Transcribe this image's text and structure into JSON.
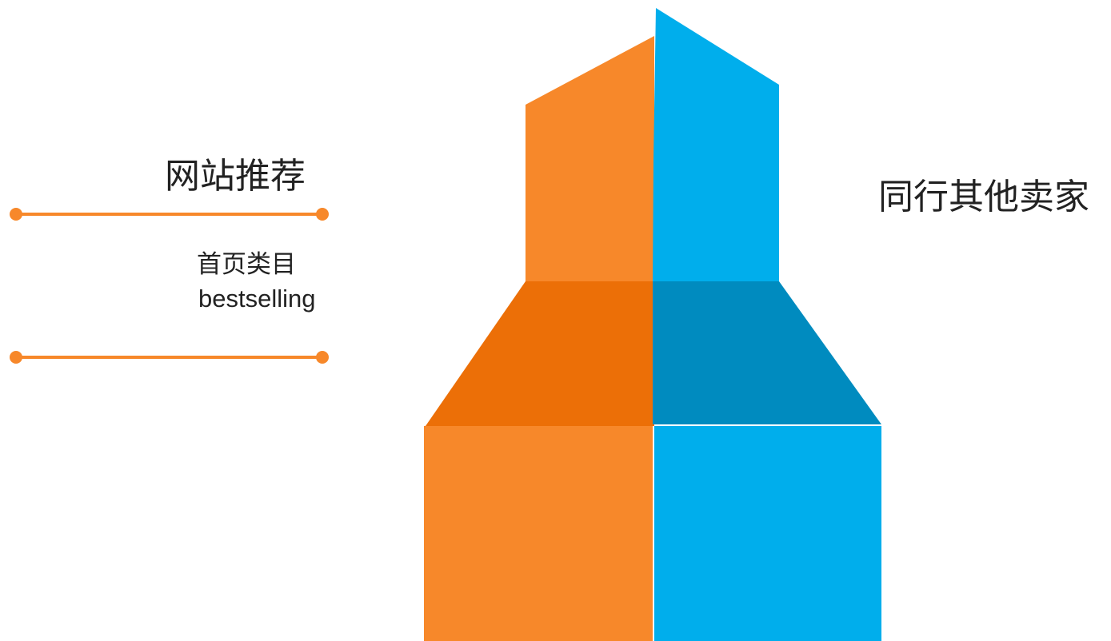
{
  "diagram": {
    "left_title": "网站推荐",
    "left_sub_line1": "首页类目",
    "left_sub_line2": "bestselling",
    "right_title": "同行其他卖家"
  },
  "colors": {
    "orange": "#F7882A",
    "orange_dark": "#EC6F07",
    "blue": "#00AEEC",
    "blue_dark": "#008BBF",
    "connector": "#F7882A"
  }
}
